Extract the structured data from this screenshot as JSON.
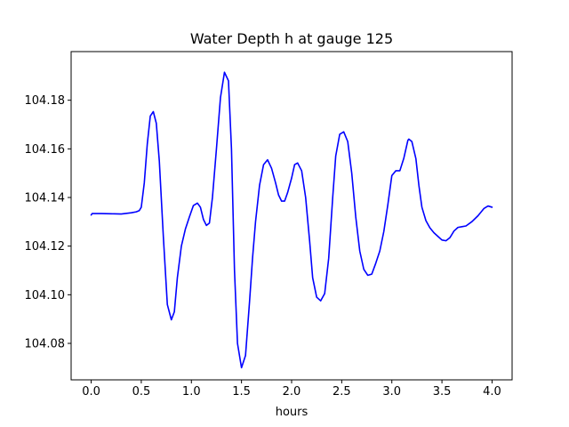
{
  "chart_data": {
    "type": "line",
    "title": "Water Depth h at gauge 125",
    "xlabel": "hours",
    "ylabel": "",
    "xlim": [
      -0.2,
      4.2
    ],
    "ylim": [
      104.065,
      104.2
    ],
    "grid": false,
    "x_ticks": [
      0.0,
      0.5,
      1.0,
      1.5,
      2.0,
      2.5,
      3.0,
      3.5,
      4.0
    ],
    "x_tick_labels": [
      "0.0",
      "0.5",
      "1.0",
      "1.5",
      "2.0",
      "2.5",
      "3.0",
      "3.5",
      "4.0"
    ],
    "y_ticks": [
      104.08,
      104.1,
      104.12,
      104.14,
      104.16,
      104.18
    ],
    "y_tick_labels": [
      "104.08",
      "104.10",
      "104.12",
      "104.14",
      "104.16",
      "104.18"
    ],
    "series": [
      {
        "color": "#0000ff",
        "x": [
          0.0,
          0.01,
          0.1,
          0.2,
          0.3,
          0.4,
          0.45,
          0.48,
          0.5,
          0.53,
          0.56,
          0.59,
          0.62,
          0.65,
          0.68,
          0.72,
          0.76,
          0.8,
          0.83,
          0.86,
          0.9,
          0.94,
          0.98,
          1.02,
          1.06,
          1.09,
          1.12,
          1.15,
          1.18,
          1.21,
          1.25,
          1.29,
          1.33,
          1.37,
          1.4,
          1.43,
          1.46,
          1.5,
          1.54,
          1.58,
          1.61,
          1.64,
          1.68,
          1.72,
          1.76,
          1.8,
          1.84,
          1.87,
          1.9,
          1.93,
          1.96,
          2.0,
          2.03,
          2.06,
          2.1,
          2.14,
          2.18,
          2.21,
          2.25,
          2.29,
          2.33,
          2.37,
          2.41,
          2.44,
          2.48,
          2.52,
          2.56,
          2.6,
          2.64,
          2.68,
          2.72,
          2.76,
          2.8,
          2.84,
          2.88,
          2.92,
          2.96,
          3.0,
          3.04,
          3.08,
          3.12,
          3.16,
          3.17,
          3.2,
          3.24,
          3.27,
          3.3,
          3.34,
          3.38,
          3.42,
          3.46,
          3.5,
          3.54,
          3.58,
          3.62,
          3.66,
          3.7,
          3.74,
          3.8,
          3.86,
          3.92,
          3.96,
          4.0
        ],
        "y": [
          104.1328,
          104.1334,
          104.1334,
          104.1333,
          104.1332,
          104.1337,
          104.1341,
          104.1346,
          104.136,
          104.146,
          104.162,
          104.1735,
          104.1753,
          104.1705,
          104.155,
          104.124,
          104.096,
          104.0897,
          104.093,
          104.107,
          104.12,
          104.127,
          104.132,
          104.1367,
          104.1377,
          104.136,
          104.131,
          104.1285,
          104.1295,
          104.14,
          104.16,
          104.181,
          104.1915,
          104.188,
          104.16,
          104.11,
          104.08,
          104.07,
          104.075,
          104.097,
          104.115,
          104.13,
          104.145,
          104.1535,
          104.1555,
          104.152,
          104.146,
          104.141,
          104.1385,
          104.1385,
          104.142,
          104.148,
          104.1535,
          104.1542,
          104.151,
          104.14,
          104.122,
          104.107,
          104.099,
          104.0975,
          104.1005,
          104.115,
          104.14,
          104.157,
          104.166,
          104.167,
          104.163,
          104.15,
          104.132,
          104.118,
          104.1105,
          104.108,
          104.1085,
          104.113,
          104.118,
          104.126,
          104.137,
          104.149,
          104.151,
          104.151,
          104.1562,
          104.1635,
          104.164,
          104.163,
          104.156,
          104.145,
          104.136,
          104.1305,
          104.1275,
          104.1255,
          104.124,
          104.1225,
          104.1222,
          104.1235,
          104.1262,
          104.1277,
          104.128,
          104.1283,
          104.1301,
          104.1325,
          104.1355,
          104.1365,
          104.136
        ]
      }
    ]
  }
}
